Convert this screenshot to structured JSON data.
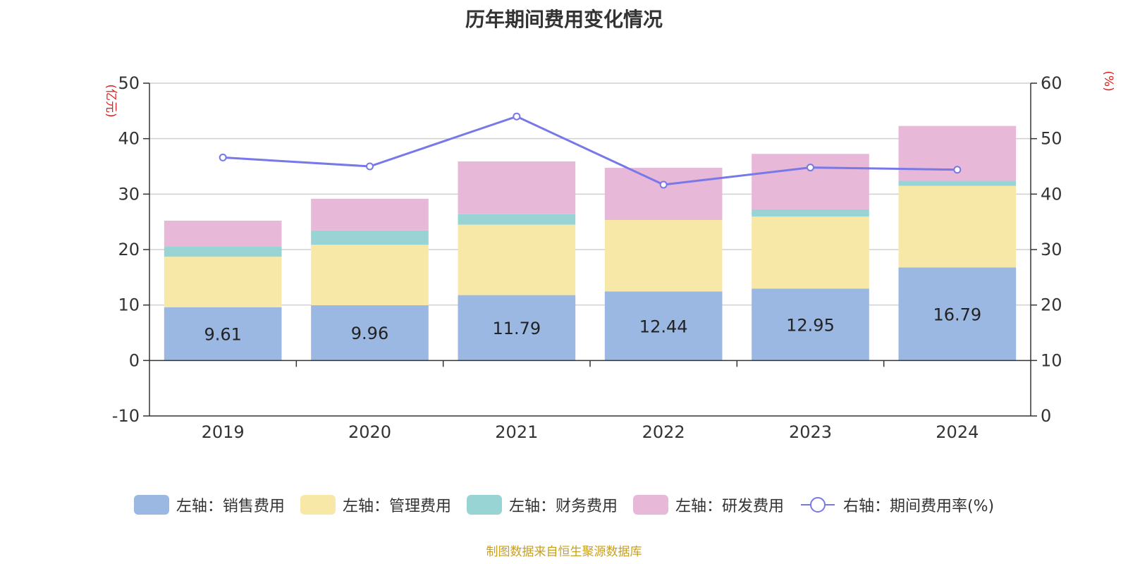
{
  "chart_data": {
    "type": "bar",
    "stacked": true,
    "title": "历年期间费用变化情况",
    "categories": [
      "2019",
      "2020",
      "2021",
      "2022",
      "2023",
      "2024"
    ],
    "y_left": {
      "label": "(亿元)",
      "range": [
        -10,
        50
      ],
      "ticks": [
        -10,
        0,
        10,
        20,
        30,
        40,
        50
      ]
    },
    "y_right": {
      "label": "(%)",
      "range": [
        0,
        60
      ],
      "ticks": [
        0,
        10,
        20,
        30,
        40,
        50,
        60
      ]
    },
    "grid": true,
    "legend_position": "bottom",
    "series": [
      {
        "name": "左轴：销售费用",
        "axis": "left",
        "type": "bar",
        "color": "#9bb8e2",
        "values": [
          9.61,
          9.96,
          11.79,
          12.44,
          12.95,
          16.79
        ],
        "data_labels": true
      },
      {
        "name": "左轴：管理费用",
        "axis": "left",
        "type": "bar",
        "color": "#f8e8a8",
        "values": [
          9.1,
          10.9,
          12.7,
          12.9,
          13.0,
          14.7
        ]
      },
      {
        "name": "左轴：财务费用",
        "axis": "left",
        "type": "bar",
        "color": "#98d4d4",
        "values": [
          1.8,
          2.6,
          1.9,
          0.1,
          1.3,
          0.9
        ]
      },
      {
        "name": "左轴：研发费用",
        "axis": "left",
        "type": "bar",
        "color": "#e8b8d8",
        "values": [
          4.7,
          5.7,
          9.5,
          9.3,
          10.0,
          9.9
        ]
      },
      {
        "name": "右轴：期间费用率(%)",
        "axis": "right",
        "type": "line",
        "color": "#7878e8",
        "values": [
          46.6,
          45.0,
          54.0,
          41.7,
          44.8,
          44.4
        ]
      }
    ],
    "source": "制图数据来自恒生聚源数据库"
  }
}
